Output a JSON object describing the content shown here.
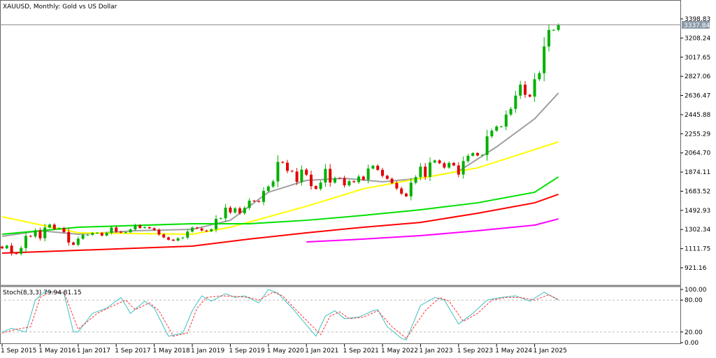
{
  "chart_data": [
    {
      "type": "candlestick",
      "title": "XAUUSD, Monthly:  Gold vs US Dollar",
      "start": "2015-09",
      "closes": [
        1115,
        1142,
        1065,
        1061,
        1118,
        1238,
        1233,
        1293,
        1215,
        1322,
        1351,
        1309,
        1316,
        1277,
        1173,
        1151,
        1211,
        1249,
        1249,
        1268,
        1268,
        1242,
        1269,
        1322,
        1280,
        1271,
        1275,
        1303,
        1345,
        1318,
        1325,
        1315,
        1298,
        1253,
        1224,
        1201,
        1192,
        1215,
        1222,
        1282,
        1321,
        1313,
        1292,
        1284,
        1305,
        1409,
        1414,
        1520,
        1472,
        1513,
        1464,
        1517,
        1589,
        1585,
        1577,
        1686,
        1730,
        1781,
        1975,
        1967,
        1886,
        1879,
        1776,
        1898,
        1848,
        1734,
        1707,
        1769,
        1906,
        1770,
        1814,
        1813,
        1742,
        1783,
        1774,
        1829,
        1797,
        1909,
        1937,
        1896,
        1837,
        1807,
        1765,
        1711,
        1660,
        1633,
        1768,
        1824,
        1928,
        1827,
        1969,
        1990,
        1962,
        1919,
        1965,
        1940,
        1849,
        1983,
        2036,
        2063,
        2039,
        2044,
        2230,
        2286,
        2327,
        2327,
        2447,
        2503,
        2635,
        2744,
        2643,
        2625,
        2798,
        2858,
        3124,
        3288,
        3289,
        3337
      ],
      "first_open": 1132,
      "current_price": "3337.84",
      "y_ticks": [
        "3398.83",
        "3208.24",
        "3017.65",
        "2827.06",
        "2636.47",
        "2445.88",
        "2255.29",
        "2064.70",
        "1874.11",
        "1683.52",
        "1492.93",
        "1302.34",
        "1111.75",
        "921.16"
      ],
      "ylim": [
        921.16,
        3398.83
      ],
      "x_ticks": [
        "1 Sep 2015",
        "1 May 2016",
        "1 Jan 2017",
        "1 Sep 2017",
        "1 May 2018",
        "1 Jan 2019",
        "1 Sep 2019",
        "1 May 2020",
        "1 Jan 2021",
        "1 Sep 2021",
        "1 May 2022",
        "1 Jan 2023",
        "1 Sep 2023",
        "1 May 2024",
        "1 Jan 2025"
      ],
      "colors": {
        "up": "#00b000",
        "down": "#e00000"
      },
      "moving_averages": [
        {
          "color": "#a0a0a0",
          "points": [
            [
              "2015-09",
              1234
            ],
            [
              "2016-05",
              1290
            ],
            [
              "2017-01",
              1255
            ],
            [
              "2018-01",
              1290
            ],
            [
              "2019-01",
              1304
            ],
            [
              "2019-09",
              1394
            ],
            [
              "2020-05",
              1673
            ],
            [
              "2021-01",
              1791
            ],
            [
              "2021-09",
              1812
            ],
            [
              "2022-05",
              1777
            ],
            [
              "2023-01",
              1812
            ],
            [
              "2023-09",
              1882
            ],
            [
              "2024-05",
              2125
            ],
            [
              "2025-01",
              2404
            ],
            [
              "2025-06",
              2661
            ]
          ]
        },
        {
          "color": "#ffff00",
          "points": [
            [
              "2015-09",
              1429
            ],
            [
              "2017-01",
              1270
            ],
            [
              "2019-01",
              1255
            ],
            [
              "2019-09",
              1325
            ],
            [
              "2021-01",
              1533
            ],
            [
              "2022-01",
              1708
            ],
            [
              "2023-01",
              1812
            ],
            [
              "2024-01",
              1916
            ],
            [
              "2025-06",
              2174
            ]
          ]
        },
        {
          "color": "#00e000",
          "points": [
            [
              "2015-09",
              1255
            ],
            [
              "2017-01",
              1325
            ],
            [
              "2019-01",
              1360
            ],
            [
              "2020-01",
              1360
            ],
            [
              "2021-01",
              1394
            ],
            [
              "2022-01",
              1443
            ],
            [
              "2023-01",
              1499
            ],
            [
              "2024-01",
              1568
            ],
            [
              "2025-01",
              1673
            ],
            [
              "2025-06",
              1826
            ]
          ]
        },
        {
          "color": "#ff0000",
          "points": [
            [
              "2015-09",
              1067
            ],
            [
              "2018-01",
              1116
            ],
            [
              "2019-01",
              1137
            ],
            [
              "2020-01",
              1207
            ],
            [
              "2021-01",
              1269
            ],
            [
              "2022-01",
              1325
            ],
            [
              "2023-01",
              1373
            ],
            [
              "2024-01",
              1464
            ],
            [
              "2025-01",
              1568
            ],
            [
              "2025-06",
              1652
            ]
          ]
        },
        {
          "color": "#ff00ff",
          "points": [
            [
              "2021-01",
              1179
            ],
            [
              "2022-01",
              1207
            ],
            [
              "2023-01",
              1241
            ],
            [
              "2024-01",
              1290
            ],
            [
              "2025-01",
              1346
            ],
            [
              "2025-06",
              1408
            ]
          ]
        }
      ]
    },
    {
      "type": "line",
      "title": "Stoch(8,3,3) 79.94 81.15",
      "y_ticks": [
        "100.00",
        "80.00",
        "20.00",
        "0.00"
      ],
      "ylim": [
        0,
        100
      ],
      "levels": [
        80,
        20
      ],
      "series": [
        {
          "color": "#40c0c0",
          "style": "solid",
          "points": [
            [
              "2015-09",
              20
            ],
            [
              "2015-11",
              27
            ],
            [
              "2016-02",
              20
            ],
            [
              "2016-04",
              80
            ],
            [
              "2016-06",
              96
            ],
            [
              "2016-08",
              95
            ],
            [
              "2016-10",
              93
            ],
            [
              "2016-12",
              20
            ],
            [
              "2017-01",
              20
            ],
            [
              "2017-04",
              55
            ],
            [
              "2017-07",
              65
            ],
            [
              "2017-10",
              85
            ],
            [
              "2017-12",
              55
            ],
            [
              "2018-03",
              78
            ],
            [
              "2018-05",
              65
            ],
            [
              "2018-08",
              12
            ],
            [
              "2018-11",
              18
            ],
            [
              "2019-01",
              60
            ],
            [
              "2019-03",
              88
            ],
            [
              "2019-05",
              78
            ],
            [
              "2019-08",
              92
            ],
            [
              "2019-10",
              85
            ],
            [
              "2019-12",
              88
            ],
            [
              "2020-03",
              75
            ],
            [
              "2020-05",
              100
            ],
            [
              "2020-07",
              93
            ],
            [
              "2020-10",
              65
            ],
            [
              "2021-03",
              12
            ],
            [
              "2021-05",
              50
            ],
            [
              "2021-07",
              60
            ],
            [
              "2021-09",
              45
            ],
            [
              "2021-12",
              48
            ],
            [
              "2022-03",
              60
            ],
            [
              "2022-04",
              62
            ],
            [
              "2022-06",
              30
            ],
            [
              "2022-09",
              8
            ],
            [
              "2022-10",
              5
            ],
            [
              "2023-01",
              70
            ],
            [
              "2023-04",
              85
            ],
            [
              "2023-06",
              80
            ],
            [
              "2023-09",
              35
            ],
            [
              "2023-12",
              55
            ],
            [
              "2024-03",
              80
            ],
            [
              "2024-06",
              85
            ],
            [
              "2024-09",
              88
            ],
            [
              "2024-12",
              78
            ],
            [
              "2025-03",
              95
            ],
            [
              "2025-06",
              80
            ]
          ]
        },
        {
          "color": "#ff3030",
          "style": "dashed",
          "points": [
            [
              "2015-09",
              18
            ],
            [
              "2015-12",
              25
            ],
            [
              "2016-03",
              30
            ],
            [
              "2016-05",
              85
            ],
            [
              "2016-07",
              95
            ],
            [
              "2016-10",
              95
            ],
            [
              "2017-01",
              25
            ],
            [
              "2017-05",
              55
            ],
            [
              "2017-08",
              68
            ],
            [
              "2017-11",
              80
            ],
            [
              "2018-01",
              62
            ],
            [
              "2018-04",
              75
            ],
            [
              "2018-06",
              60
            ],
            [
              "2018-09",
              12
            ],
            [
              "2018-12",
              18
            ],
            [
              "2019-02",
              65
            ],
            [
              "2019-04",
              85
            ],
            [
              "2019-07",
              88
            ],
            [
              "2019-10",
              87
            ],
            [
              "2020-01",
              85
            ],
            [
              "2020-03",
              80
            ],
            [
              "2020-06",
              95
            ],
            [
              "2020-08",
              88
            ],
            [
              "2020-11",
              60
            ],
            [
              "2021-04",
              15
            ],
            [
              "2021-06",
              50
            ],
            [
              "2021-08",
              58
            ],
            [
              "2021-10",
              45
            ],
            [
              "2022-01",
              48
            ],
            [
              "2022-04",
              60
            ],
            [
              "2022-07",
              30
            ],
            [
              "2022-10",
              8
            ],
            [
              "2023-02",
              60
            ],
            [
              "2023-05",
              85
            ],
            [
              "2023-07",
              78
            ],
            [
              "2023-10",
              40
            ],
            [
              "2024-01",
              55
            ],
            [
              "2024-04",
              80
            ],
            [
              "2024-07",
              85
            ],
            [
              "2024-10",
              85
            ],
            [
              "2025-01",
              80
            ],
            [
              "2025-04",
              90
            ],
            [
              "2025-06",
              81
            ]
          ]
        }
      ]
    }
  ]
}
